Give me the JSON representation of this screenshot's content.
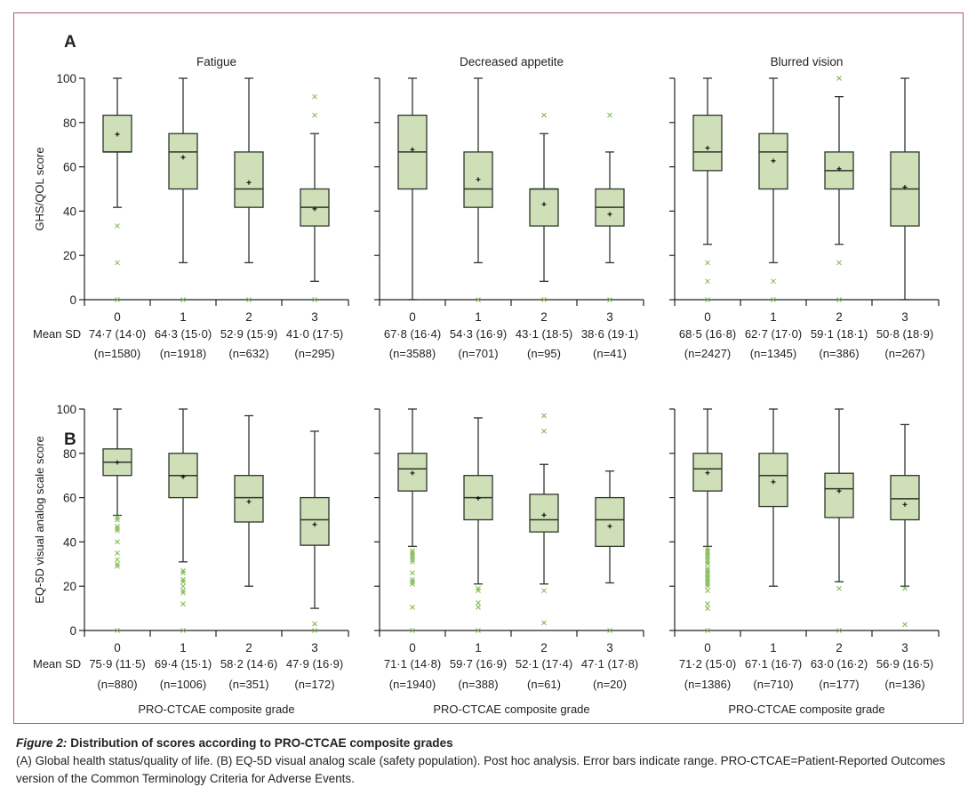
{
  "figure": {
    "caption_label": "Figure 2:",
    "caption_title": "Distribution of scores according to PRO-CTCAE composite grades",
    "caption_text": "(A) Global health status/quality of life. (B) EQ-5D visual analog scale (safety population). Post hoc analysis. Error bars indicate range. PRO-CTCAE=Patient-Reported Outcomes version of the Common Terminology Criteria for Adverse Events.",
    "colors": {
      "box_fill": "#cfe0b8",
      "box_stroke": "#2e352c",
      "outlier": "#7ab648",
      "frame": "#b4546f"
    }
  },
  "chart_data": [
    {
      "panel": "A",
      "type": "box",
      "ylabel": "GHS/QOL score",
      "ylim": [
        0,
        100
      ],
      "yticks": [
        0,
        20,
        40,
        60,
        80,
        100
      ],
      "xlabel": "",
      "stats_label": "Mean SD",
      "categories": [
        "0",
        "1",
        "2",
        "3"
      ],
      "facets": [
        {
          "title": "Fatigue",
          "boxes": [
            {
              "min": 41.7,
              "q1": 66.7,
              "median": 66.7,
              "q3": 83.3,
              "max": 100,
              "mean": 74.7,
              "sd": "14·0",
              "n": "1580",
              "outliers": [
                33.3,
                16.7,
                0
              ]
            },
            {
              "min": 16.7,
              "q1": 50,
              "median": 66.7,
              "q3": 75,
              "max": 100,
              "mean": 64.3,
              "sd": "15·0",
              "n": "1918",
              "outliers": [
                0
              ]
            },
            {
              "min": 16.7,
              "q1": 41.7,
              "median": 50,
              "q3": 66.7,
              "max": 100,
              "mean": 52.9,
              "sd": "15·9",
              "n": "632",
              "outliers": [
                0
              ]
            },
            {
              "min": 8.3,
              "q1": 33.3,
              "median": 41.7,
              "q3": 50,
              "max": 75,
              "mean": 41.0,
              "sd": "17·5",
              "n": "295",
              "outliers": [
                91.7,
                83.3,
                0
              ]
            }
          ]
        },
        {
          "title": "Decreased appetite",
          "boxes": [
            {
              "min": 0,
              "q1": 50,
              "median": 66.7,
              "q3": 83.3,
              "max": 100,
              "mean": 67.8,
              "sd": "16·4",
              "n": "3588",
              "outliers": []
            },
            {
              "min": 16.7,
              "q1": 41.7,
              "median": 50,
              "q3": 66.7,
              "max": 100,
              "mean": 54.3,
              "sd": "16·9",
              "n": "701",
              "outliers": [
                0
              ]
            },
            {
              "min": 8.3,
              "q1": 33.3,
              "median": 50,
              "q3": 50,
              "max": 75,
              "mean": 43.1,
              "sd": "18·5",
              "n": "95",
              "outliers": [
                83.3,
                0
              ]
            },
            {
              "min": 16.7,
              "q1": 33.3,
              "median": 41.7,
              "q3": 50,
              "max": 66.7,
              "mean": 38.6,
              "sd": "19·1",
              "n": "41",
              "outliers": [
                83.3,
                0
              ]
            }
          ]
        },
        {
          "title": "Blurred vision",
          "boxes": [
            {
              "min": 25,
              "q1": 58.3,
              "median": 66.7,
              "q3": 83.3,
              "max": 100,
              "mean": 68.5,
              "sd": "16·8",
              "n": "2427",
              "outliers": [
                16.7,
                8.3,
                0
              ]
            },
            {
              "min": 16.7,
              "q1": 50,
              "median": 66.7,
              "q3": 75,
              "max": 100,
              "mean": 62.7,
              "sd": "17·0",
              "n": "1345",
              "outliers": [
                8.3,
                0
              ]
            },
            {
              "min": 25,
              "q1": 50,
              "median": 58.3,
              "q3": 66.7,
              "max": 91.7,
              "mean": 59.1,
              "sd": "18·1",
              "n": "386",
              "outliers": [
                100,
                16.7,
                0
              ]
            },
            {
              "min": 0,
              "q1": 33.3,
              "median": 50,
              "q3": 66.7,
              "max": 100,
              "mean": 50.8,
              "sd": "18·9",
              "n": "267",
              "outliers": []
            }
          ]
        }
      ]
    },
    {
      "panel": "B",
      "type": "box",
      "ylabel": "EQ-5D visual analog scale score",
      "ylim": [
        0,
        100
      ],
      "yticks": [
        0,
        20,
        40,
        60,
        80,
        100
      ],
      "xlabel": "PRO-CTCAE composite grade",
      "stats_label": "Mean SD",
      "categories": [
        "0",
        "1",
        "2",
        "3"
      ],
      "facets": [
        {
          "title": "",
          "boxes": [
            {
              "min": 52,
              "q1": 70,
              "median": 76,
              "q3": 82,
              "max": 100,
              "mean": 75.9,
              "sd": "11·5",
              "n": "880",
              "outliers": [
                51,
                50,
                47,
                46,
                45,
                40,
                35,
                32,
                30,
                29,
                0
              ]
            },
            {
              "min": 31,
              "q1": 60,
              "median": 70,
              "q3": 80,
              "max": 100,
              "mean": 69.4,
              "sd": "15·1",
              "n": "1006",
              "outliers": [
                27,
                26,
                23,
                22,
                20,
                18,
                17,
                12,
                0
              ]
            },
            {
              "min": 20,
              "q1": 49,
              "median": 60,
              "q3": 70,
              "max": 97,
              "mean": 58.2,
              "sd": "14·6",
              "n": "351",
              "outliers": []
            },
            {
              "min": 10,
              "q1": 38.5,
              "median": 50,
              "q3": 60,
              "max": 90,
              "mean": 47.9,
              "sd": "16·9",
              "n": "172",
              "outliers": [
                3,
                0
              ]
            }
          ]
        },
        {
          "title": "",
          "boxes": [
            {
              "min": 38,
              "q1": 63,
              "median": 73,
              "q3": 80,
              "max": 100,
              "mean": 71.1,
              "sd": "14·8",
              "n": "1940",
              "outliers": [
                36,
                35,
                34,
                33,
                32,
                31,
                26,
                23,
                22,
                21,
                10.5,
                0
              ]
            },
            {
              "min": 21,
              "q1": 50,
              "median": 60,
              "q3": 70,
              "max": 96,
              "mean": 59.7,
              "sd": "16·9",
              "n": "388",
              "outliers": [
                19,
                18,
                12.5,
                10.5,
                0
              ]
            },
            {
              "min": 21,
              "q1": 44.5,
              "median": 50,
              "q3": 61.5,
              "max": 75,
              "mean": 52.1,
              "sd": "17·4",
              "n": "61",
              "outliers": [
                97,
                90,
                18,
                3.5
              ]
            },
            {
              "min": 21.5,
              "q1": 38,
              "median": 50,
              "q3": 60,
              "max": 72,
              "mean": 47.1,
              "sd": "17·8",
              "n": "20",
              "outliers": [
                0
              ]
            }
          ]
        },
        {
          "title": "",
          "boxes": [
            {
              "min": 38,
              "q1": 63,
              "median": 73,
              "q3": 80,
              "max": 100,
              "mean": 71.2,
              "sd": "15·0",
              "n": "1386",
              "outliers": [
                37,
                36,
                35,
                34,
                33,
                32,
                31,
                30,
                28,
                27,
                26,
                25,
                24,
                23,
                22,
                21,
                20,
                18,
                12,
                10,
                0
              ]
            },
            {
              "min": 20,
              "q1": 56,
              "median": 70,
              "q3": 80,
              "max": 100,
              "mean": 67.1,
              "sd": "16·7",
              "n": "710",
              "outliers": []
            },
            {
              "min": 22,
              "q1": 51,
              "median": 64,
              "q3": 71,
              "max": 100,
              "mean": 63.0,
              "sd": "16·2",
              "n": "177",
              "outliers": [
                19,
                0
              ]
            },
            {
              "min": 20,
              "q1": 50,
              "median": 59.5,
              "q3": 70,
              "max": 93,
              "mean": 56.9,
              "sd": "16·5",
              "n": "136",
              "outliers": [
                19,
                2.7
              ]
            }
          ]
        }
      ]
    }
  ]
}
